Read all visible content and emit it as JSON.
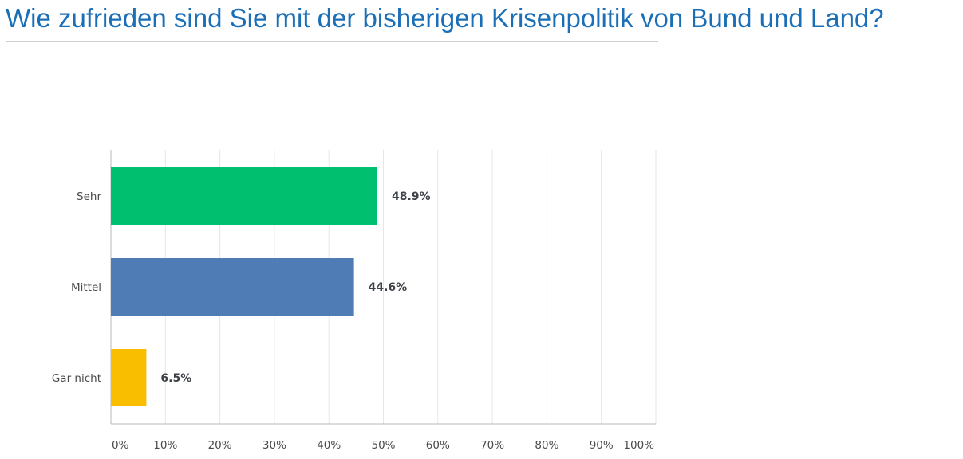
{
  "title": "Wie zufrieden sind Sie mit der bisherigen Krisenpolitik von Bund und Land?",
  "chart_data": {
    "type": "bar",
    "orientation": "horizontal",
    "categories": [
      "Sehr",
      "Mittel",
      "Gar nicht"
    ],
    "values": [
      48.9,
      44.6,
      6.5
    ],
    "value_labels": [
      "48.9%",
      "44.6%",
      "6.5%"
    ],
    "colors": [
      "#00bf6f",
      "#507cb6",
      "#f9be00"
    ],
    "xlim": [
      0,
      100
    ],
    "xticks": [
      "0%",
      "10%",
      "20%",
      "30%",
      "40%",
      "50%",
      "60%",
      "70%",
      "80%",
      "90%",
      "100%"
    ],
    "grid": true,
    "xlabel": "",
    "ylabel": ""
  }
}
